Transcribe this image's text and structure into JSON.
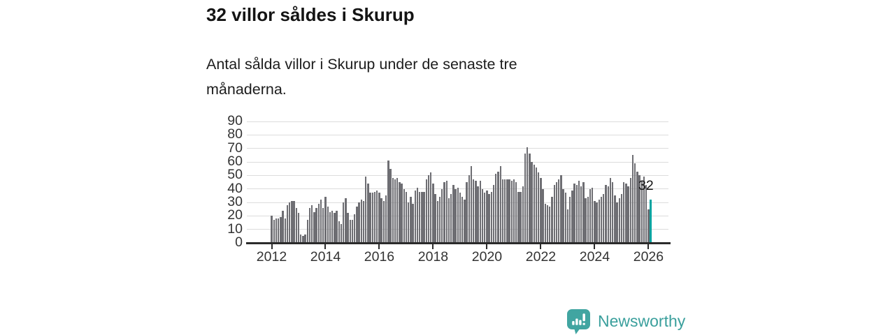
{
  "header": {
    "title": "32 villor såldes i Skurup",
    "subtitle": "Antal sålda villor i Skurup under de senaste tre månaderna."
  },
  "chart_data": {
    "type": "bar",
    "title": "32 villor såldes i Skurup",
    "subtitle": "Antal sålda villor i Skurup under de senaste tre månaderna.",
    "x_monthly_start": "2012-01",
    "x_monthly_end": "2026-02",
    "x_tick_labels": [
      "2012",
      "2014",
      "2016",
      "2018",
      "2020",
      "2022",
      "2024",
      "2026"
    ],
    "y_ticks": [
      0,
      10,
      20,
      30,
      40,
      50,
      60,
      70,
      80,
      90
    ],
    "ylim": [
      0,
      90
    ],
    "grid": true,
    "legend": false,
    "bar_color": "#6e6e73",
    "values": [
      20,
      17,
      18,
      18,
      19,
      24,
      18,
      28,
      30,
      31,
      31,
      26,
      22,
      6,
      5,
      6,
      17,
      26,
      28,
      23,
      26,
      29,
      32,
      26,
      34,
      27,
      23,
      24,
      22,
      24,
      16,
      14,
      30,
      33,
      22,
      17,
      17,
      21,
      27,
      30,
      32,
      31,
      49,
      44,
      37,
      37,
      38,
      39,
      37,
      33,
      31,
      35,
      61,
      55,
      48,
      47,
      48,
      45,
      44,
      40,
      38,
      30,
      34,
      29,
      39,
      41,
      38,
      38,
      38,
      47,
      50,
      52,
      44,
      36,
      31,
      34,
      40,
      45,
      46,
      33,
      36,
      43,
      40,
      41,
      37,
      34,
      32,
      45,
      50,
      57,
      47,
      46,
      42,
      46,
      40,
      37,
      39,
      36,
      38,
      43,
      51,
      53,
      57,
      47,
      47,
      47,
      47,
      46,
      47,
      45,
      38,
      38,
      42,
      66,
      71,
      66,
      60,
      58,
      56,
      52,
      48,
      40,
      29,
      28,
      27,
      34,
      43,
      45,
      47,
      50,
      40,
      37,
      25,
      34,
      39,
      44,
      43,
      46,
      42,
      45,
      33,
      34,
      40,
      41,
      31,
      30,
      32,
      34,
      36,
      43,
      42,
      48,
      45,
      35,
      30,
      33,
      36,
      45,
      44,
      42,
      48,
      65,
      59,
      53,
      50,
      46,
      49,
      43,
      25,
      32
    ],
    "highlight": {
      "index": 169,
      "value": 32,
      "label": "32",
      "color": "#00a3a0"
    }
  },
  "footer": {
    "brand": "Newsworthy",
    "brand_color": "#3a9f9c",
    "icon_color": "#41a5a1"
  }
}
